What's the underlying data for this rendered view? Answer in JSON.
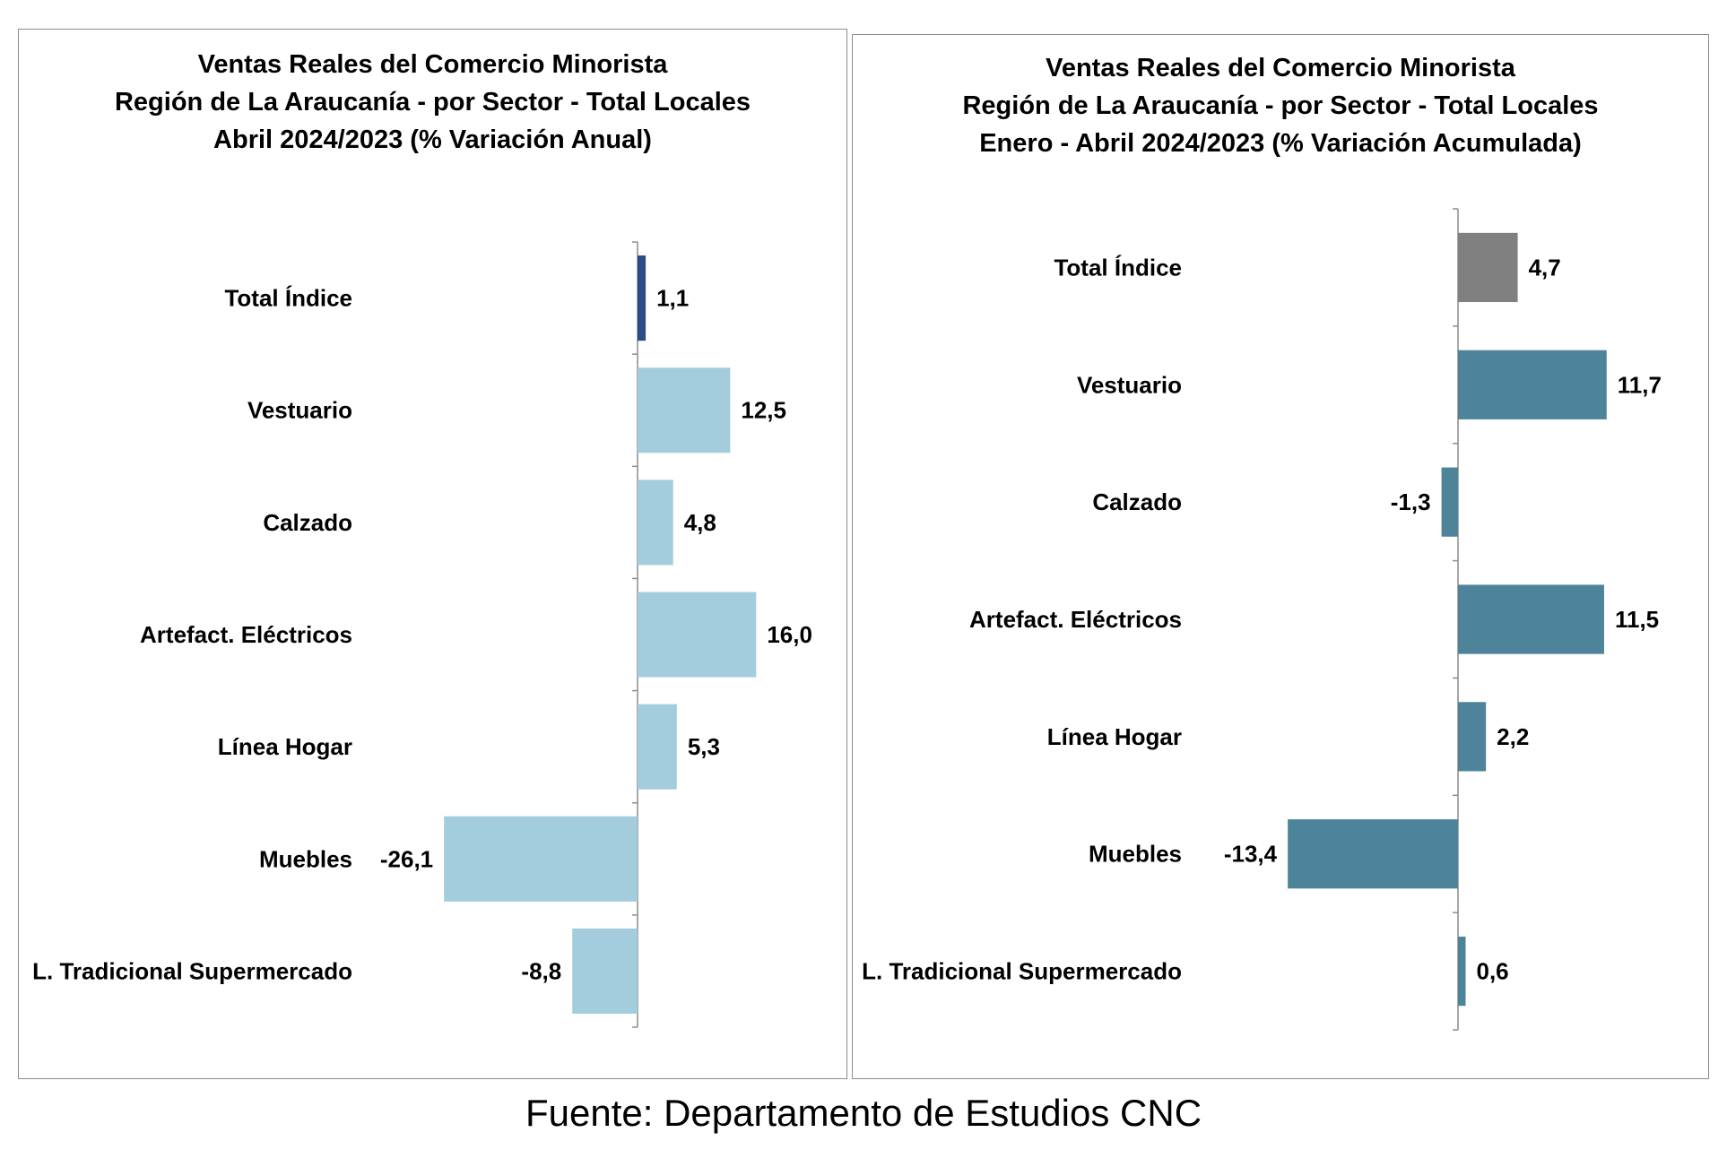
{
  "source": "Fuente: Departamento de Estudios CNC",
  "chart_data": [
    {
      "type": "bar",
      "orientation": "horizontal",
      "title": [
        "Ventas Reales del Comercio Minorista",
        "Región de La Araucanía - por Sector - Total Locales",
        "Abril 2024/2023 (% Variación Anual)"
      ],
      "categories": [
        "Total Índice",
        "Vestuario",
        "Calzado",
        "Artefact. Eléctricos",
        "Línea Hogar",
        "Muebles",
        "L. Tradicional Supermercado"
      ],
      "values": [
        1.1,
        12.5,
        4.8,
        16.0,
        5.3,
        -26.1,
        -8.8
      ],
      "value_labels": [
        "1,1",
        "12,5",
        "4,8",
        "16,0",
        "5,3",
        "-26,1",
        "-8,8"
      ],
      "colors": [
        "#2e4a87",
        "#a3cddd",
        "#a3cddd",
        "#a3cddd",
        "#a3cddd",
        "#a3cddd",
        "#a3cddd"
      ],
      "grid": false,
      "legend": "none"
    },
    {
      "type": "bar",
      "orientation": "horizontal",
      "title": [
        "Ventas Reales del Comercio Minorista",
        "Región de La Araucanía - por Sector - Total Locales",
        "Enero - Abril 2024/2023 (% Variación Acumulada)"
      ],
      "categories": [
        "Total Índice",
        "Vestuario",
        "Calzado",
        "Artefact. Eléctricos",
        "Línea Hogar",
        "Muebles",
        "L. Tradicional Supermercado"
      ],
      "values": [
        4.7,
        11.7,
        -1.3,
        11.5,
        2.2,
        -13.4,
        0.6
      ],
      "value_labels": [
        "4,7",
        "11,7",
        "-1,3",
        "11,5",
        "2,2",
        "-13,4",
        "0,6"
      ],
      "colors": [
        "#808080",
        "#4d8499",
        "#4d8499",
        "#4d8499",
        "#4d8499",
        "#4d8499",
        "#4d8499"
      ],
      "grid": false,
      "legend": "none"
    }
  ]
}
